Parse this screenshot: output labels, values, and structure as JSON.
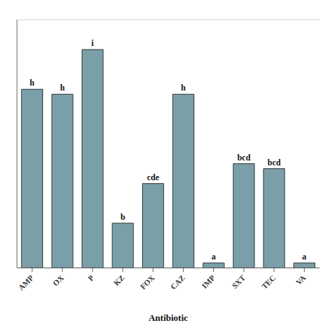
{
  "chart_data": {
    "type": "bar",
    "xlabel": "Antibiotic",
    "categories": [
      "AMP",
      "OX",
      "P",
      "KZ",
      "FOX",
      "CAZ",
      "IMP",
      "SXT",
      "TEC",
      "VA"
    ],
    "values": [
      72,
      70,
      88,
      18,
      34,
      70,
      2,
      42,
      40,
      2
    ],
    "annotations": [
      "h",
      "h",
      "i",
      "b",
      "cde",
      "h",
      "a",
      "bcd",
      "bcd",
      "a"
    ],
    "color": "#7A9FA8",
    "ylim": [
      0,
      100
    ],
    "yticks": [
      0,
      10,
      20,
      30,
      40,
      50,
      60,
      70,
      80,
      90,
      100
    ],
    "grid": true,
    "tick_labels": "x"
  }
}
